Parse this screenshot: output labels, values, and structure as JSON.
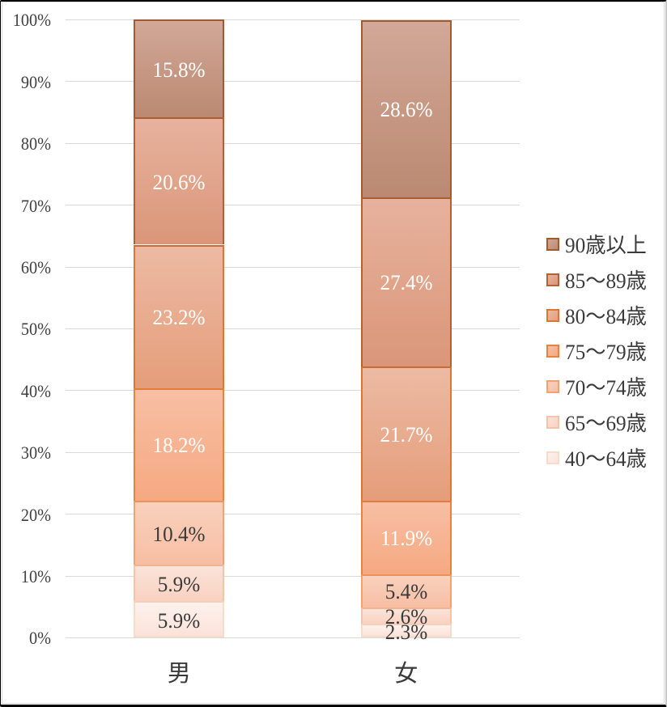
{
  "chart_data": {
    "type": "bar",
    "subtype": "stacked-100-percent-vertical",
    "title": "",
    "xlabel": "",
    "ylabel": "",
    "categories": [
      "男",
      "女"
    ],
    "series": [
      {
        "name": "40～64歳",
        "values": [
          5.9,
          2.3
        ],
        "labels": [
          "5.9%",
          "2.3%"
        ],
        "fill_top": "#FDF2ED",
        "fill_bottom": "#FBE2D9",
        "border": "#F8DCCA",
        "label_color": "#3a3a3a"
      },
      {
        "name": "65～69歳",
        "values": [
          5.9,
          2.6
        ],
        "labels": [
          "5.9%",
          "2.6%"
        ],
        "fill_top": "#FBE4D9",
        "fill_bottom": "#F9D1C1",
        "border": "#F5C4A8",
        "label_color": "#3a3a3a"
      },
      {
        "name": "70～74歳",
        "values": [
          10.4,
          5.4
        ],
        "labels": [
          "10.4%",
          "5.4%"
        ],
        "fill_top": "#F9D1BD",
        "fill_bottom": "#F7BEA4",
        "border": "#F0A273",
        "label_color": "#3a3a3a"
      },
      {
        "name": "75～79歳",
        "values": [
          18.2,
          11.9
        ],
        "labels": [
          "18.2%",
          "11.9%"
        ],
        "fill_top": "#F7BFA4",
        "fill_bottom": "#F6A981",
        "border": "#E8833F",
        "label_color": "#ffffff"
      },
      {
        "name": "80～84歳",
        "values": [
          23.2,
          21.7
        ],
        "labels": [
          "23.2%",
          "21.7%"
        ],
        "fill_top": "#ECBAA3",
        "fill_bottom": "#E59D7A",
        "border": "#DD7533",
        "label_color": "#ffffff"
      },
      {
        "name": "85～89歳",
        "values": [
          20.6,
          27.4
        ],
        "labels": [
          "20.6%",
          "27.4%"
        ],
        "fill_top": "#E7B29D",
        "fill_bottom": "#DA9679",
        "border": "#B26134",
        "label_color": "#ffffff"
      },
      {
        "name": "90歳以上",
        "values": [
          15.8,
          28.6
        ],
        "labels": [
          "15.8%",
          "28.6%"
        ],
        "fill_top": "#D2A898",
        "fill_bottom": "#BB8971",
        "border": "#A05C30",
        "label_color": "#ffffff"
      }
    ],
    "y_axis": {
      "ticks": [
        "0%",
        "10%",
        "20%",
        "30%",
        "40%",
        "50%",
        "60%",
        "70%",
        "80%",
        "90%",
        "100%"
      ],
      "min": 0,
      "max": 100,
      "step": 10,
      "grid": true,
      "gridline_color": "#d9d9d9",
      "tick_color": "#3f3f3f"
    },
    "legend": {
      "position": "right",
      "order": [
        "90歳以上",
        "85～89歳",
        "80～84歳",
        "75～79歳",
        "70～74歳",
        "65～69歳",
        "40～64歳"
      ]
    },
    "background_color": "#ffffff",
    "frame_color": "#000000"
  }
}
